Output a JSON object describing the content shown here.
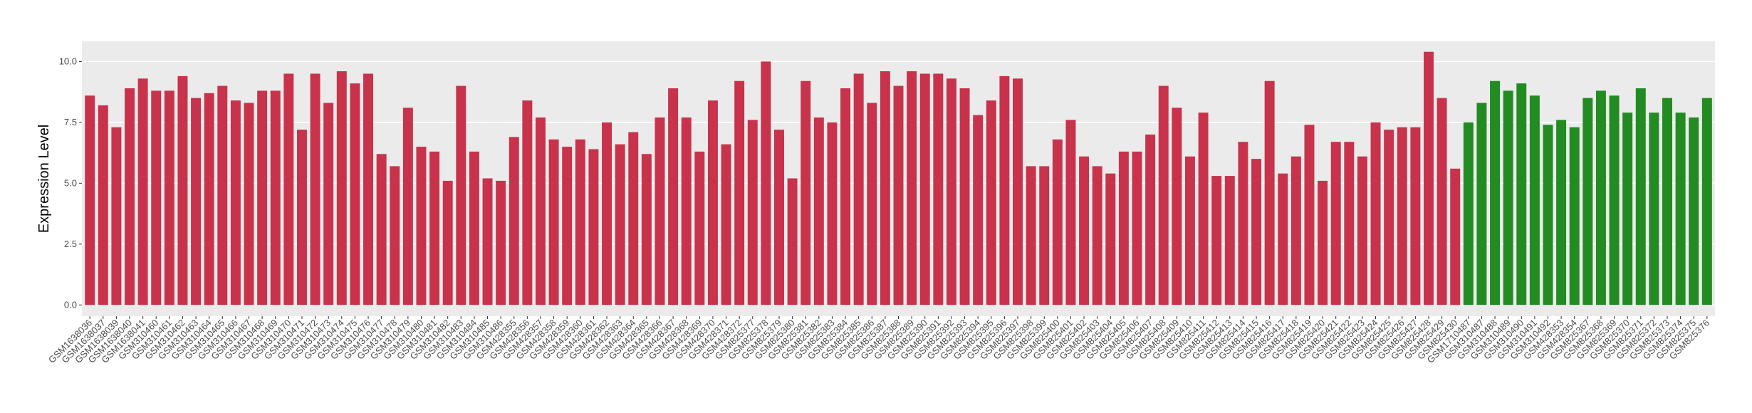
{
  "chart_data": {
    "type": "bar",
    "y_label": "Expression Level",
    "ylim": [
      -0.46,
      10.83
    ],
    "yticks": [
      {
        "value": 0,
        "label": "0.0"
      },
      2.5,
      {
        "value": 5,
        "label": "5.0"
      },
      7.5,
      {
        "value": 10,
        "label": "10.0"
      }
    ],
    "grid": true,
    "series": [
      {
        "color": "#c8334b",
        "categories": [
          "GSM1638036",
          "GSM1638037",
          "GSM1638039",
          "GSM1638040",
          "GSM1638041",
          "GSM310460",
          "GSM310461",
          "GSM310462",
          "GSM310463",
          "GSM310464",
          "GSM310465",
          "GSM310466",
          "GSM310467",
          "GSM310468",
          "GSM310469",
          "GSM310470",
          "GSM310471",
          "GSM310472",
          "GSM310473",
          "GSM310474",
          "GSM310475",
          "GSM310476",
          "GSM310477",
          "GSM310478",
          "GSM310479",
          "GSM310480",
          "GSM310481",
          "GSM310482",
          "GSM310483",
          "GSM310484",
          "GSM310485",
          "GSM310486",
          "GSM428355",
          "GSM428356",
          "GSM428357",
          "GSM428358",
          "GSM428359",
          "GSM428360",
          "GSM428361",
          "GSM428362",
          "GSM428363",
          "GSM428364",
          "GSM428365",
          "GSM428366",
          "GSM428367",
          "GSM428368",
          "GSM428369",
          "GSM428370",
          "GSM428371",
          "GSM428372",
          "GSM825377",
          "GSM825378",
          "GSM825379",
          "GSM825380",
          "GSM825381",
          "GSM825382",
          "GSM825383",
          "GSM825384",
          "GSM825385",
          "GSM825386",
          "GSM825387",
          "GSM825388",
          "GSM825389",
          "GSM825390",
          "GSM825391",
          "GSM825392",
          "GSM825393",
          "GSM825394",
          "GSM825395",
          "GSM825396",
          "GSM825397",
          "GSM825398",
          "GSM825399",
          "GSM825400",
          "GSM825401",
          "GSM825402",
          "GSM825403",
          "GSM825404",
          "GSM825405",
          "GSM825406",
          "GSM825407",
          "GSM825408",
          "GSM825409",
          "GSM825410",
          "GSM825411",
          "GSM825412",
          "GSM825413",
          "GSM825414",
          "GSM825415",
          "GSM825416",
          "GSM825417",
          "GSM825418",
          "GSM825419",
          "GSM825420",
          "GSM825421",
          "GSM825422",
          "GSM825423",
          "GSM825424",
          "GSM825425",
          "GSM825426",
          "GSM825427",
          "GSM825428",
          "GSM825429",
          "GSM825430"
        ],
        "values": [
          8.6,
          8.2,
          7.3,
          8.9,
          9.3,
          8.8,
          8.8,
          9.4,
          8.5,
          8.7,
          9.0,
          8.4,
          8.3,
          8.8,
          8.8,
          9.5,
          7.2,
          9.5,
          8.3,
          9.6,
          9.1,
          9.5,
          6.2,
          5.7,
          8.1,
          6.5,
          6.3,
          5.1,
          9.0,
          6.3,
          5.2,
          5.1,
          6.9,
          8.4,
          7.7,
          6.8,
          6.5,
          6.8,
          6.4,
          7.5,
          6.6,
          7.1,
          6.2,
          7.7,
          8.9,
          7.7,
          6.3,
          8.4,
          6.6,
          9.2,
          7.6,
          10.0,
          7.2,
          5.2,
          9.2,
          7.7,
          7.5,
          8.9,
          9.5,
          8.3,
          9.6,
          9.0,
          9.6,
          9.5,
          9.5,
          9.3,
          8.9,
          7.8,
          8.4,
          9.4,
          9.3,
          5.7,
          5.7,
          6.8,
          7.6,
          6.1,
          5.7,
          5.4,
          6.3,
          6.3,
          7.0,
          9.0,
          8.1,
          6.1,
          7.9,
          5.3,
          5.3,
          6.7,
          6.0,
          9.2,
          5.4,
          6.1,
          7.4,
          5.1,
          6.7,
          6.7,
          6.1,
          7.5,
          7.2,
          7.3,
          7.3,
          10.4,
          8.5,
          5.6
        ]
      },
      {
        "color": "#228b22",
        "categories": [
          "GSM1710487",
          "GSM310487",
          "GSM310488",
          "GSM310489",
          "GSM310490",
          "GSM310491",
          "GSM310492",
          "GSM428353",
          "GSM428354",
          "GSM825367",
          "GSM825368",
          "GSM825369",
          "GSM825370",
          "GSM825371",
          "GSM825372",
          "GSM825373",
          "GSM825374",
          "GSM825375",
          "GSM825376"
        ],
        "values": [
          7.5,
          8.3,
          9.2,
          8.8,
          9.1,
          8.6,
          7.4,
          7.6,
          7.3,
          8.5,
          8.8,
          8.6,
          7.9,
          8.9,
          7.9,
          8.5,
          7.9,
          7.7,
          8.5
        ]
      }
    ]
  }
}
